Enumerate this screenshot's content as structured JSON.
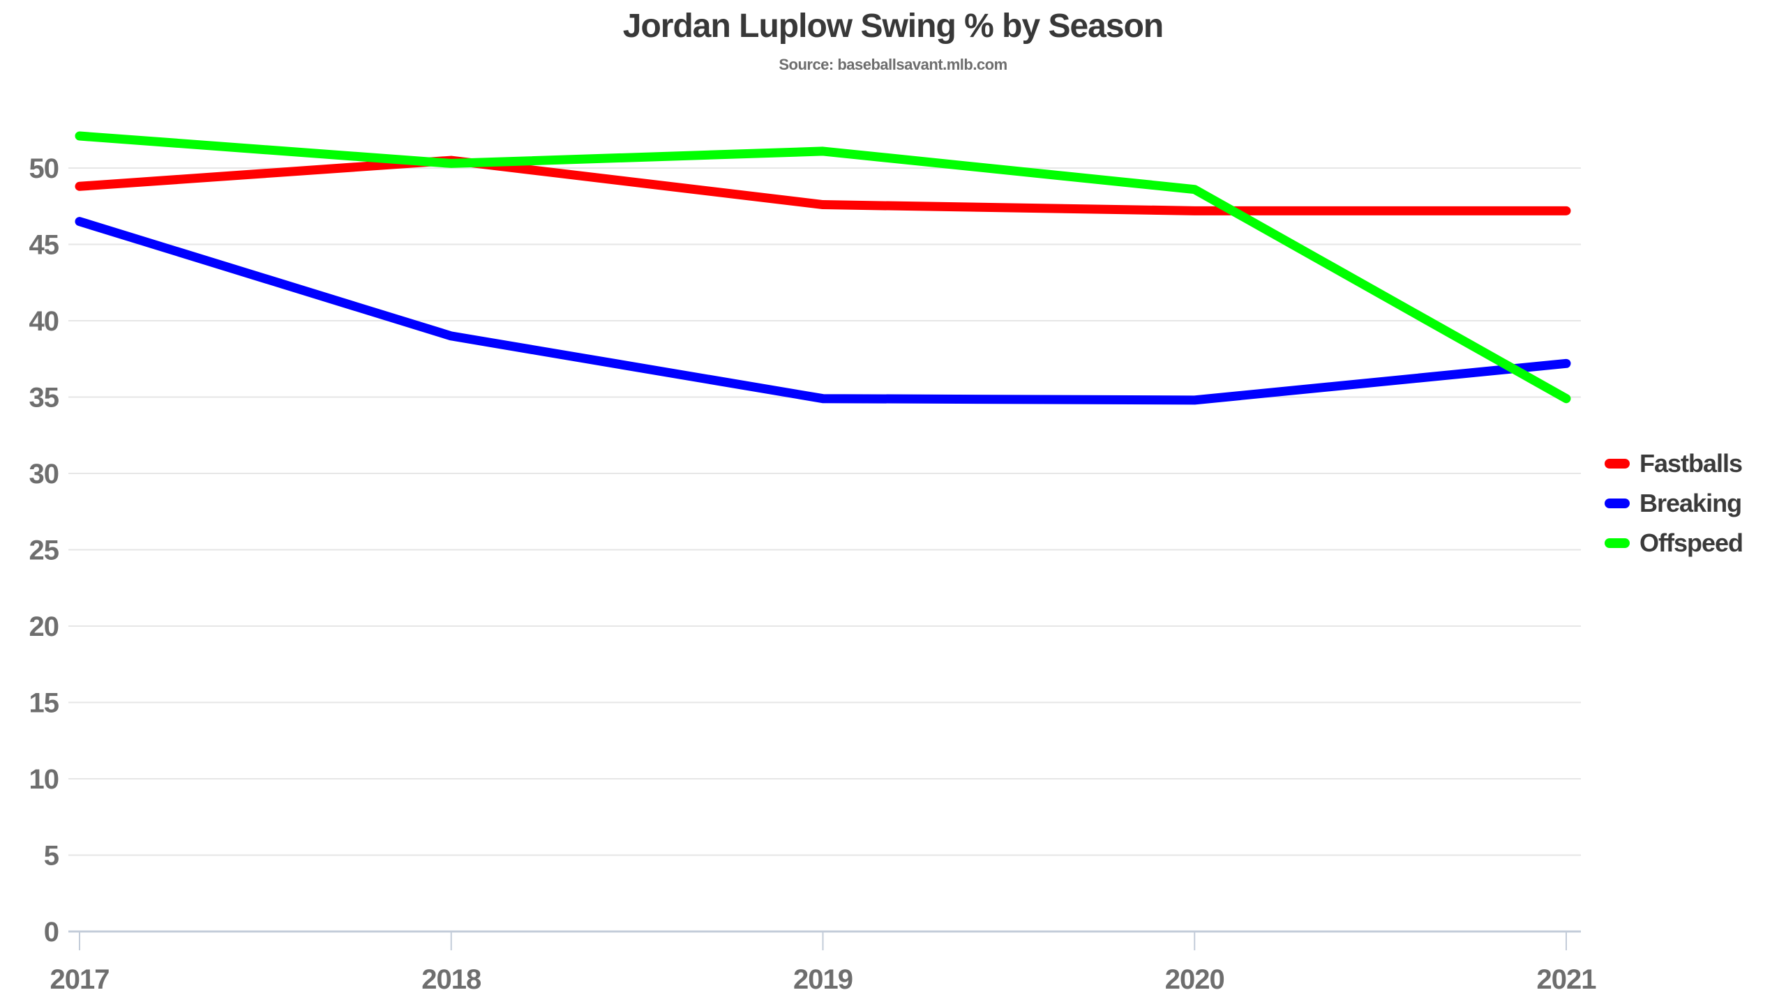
{
  "chart_data": {
    "type": "line",
    "title": "Jordan Luplow Swing % by Season",
    "subtitle": "Source: baseballsavant.mlb.com",
    "xlabel": "",
    "ylabel": "",
    "categories": [
      "2017",
      "2018",
      "2019",
      "2020",
      "2021"
    ],
    "series": [
      {
        "name": "Fastballs",
        "color": "#ff0000",
        "values": [
          48.8,
          50.5,
          47.6,
          47.2,
          47.2
        ]
      },
      {
        "name": "Breaking",
        "color": "#0000ff",
        "values": [
          46.5,
          39.0,
          34.9,
          34.8,
          37.2
        ]
      },
      {
        "name": "Offspeed",
        "color": "#00ff00",
        "values": [
          52.1,
          50.3,
          51.1,
          48.6,
          34.9
        ]
      }
    ],
    "y_ticks": [
      0,
      5,
      10,
      15,
      20,
      25,
      30,
      35,
      40,
      45,
      50
    ],
    "ylim": [
      0,
      55
    ],
    "grid": true,
    "legend_position": "right-outside",
    "colors": {
      "background": "#ffffff",
      "gridline": "#e6e6e6",
      "axis": "#c3ccd9",
      "tick_label": "#6e6e6e",
      "title": "#383838",
      "subtitle": "#6e6e6e",
      "legend_text": "#3b3b3b"
    }
  }
}
